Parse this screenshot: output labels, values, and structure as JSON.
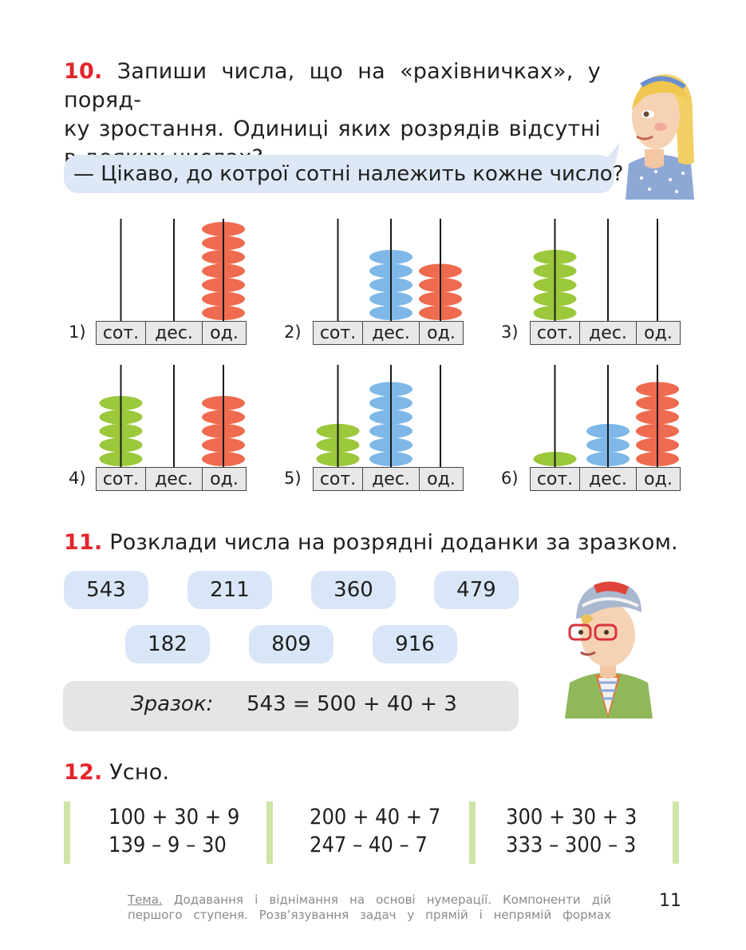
{
  "task10": {
    "number": "10.",
    "line1": "Запиши числа, що на «рахівничках», у поряд-",
    "line2": "ку зростання. Одиниці яких розрядів відсутні",
    "line3": "в деяких числах?",
    "question": "— Цікаво, до котрої сотні належить кожне число?",
    "abacus_labels": {
      "hundreds": "сот.",
      "tens": "дес.",
      "ones": "од."
    },
    "abacuses": [
      {
        "label": "1)",
        "hundreds": 0,
        "tens": 0,
        "ones": 7
      },
      {
        "label": "2)",
        "hundreds": 0,
        "tens": 5,
        "ones": 4
      },
      {
        "label": "3)",
        "hundreds": 5,
        "tens": 0,
        "ones": 0
      },
      {
        "label": "4)",
        "hundreds": 5,
        "tens": 0,
        "ones": 5
      },
      {
        "label": "5)",
        "hundreds": 3,
        "tens": 6,
        "ones": 0
      },
      {
        "label": "6)",
        "hundreds": 1,
        "tens": 3,
        "ones": 6
      }
    ],
    "colors": {
      "hundreds": "#9cc83c",
      "tens": "#7fb8e8",
      "ones": "#ee6b50"
    }
  },
  "task11": {
    "number": "11.",
    "title": "Розклади числа на розрядні доданки за зразком.",
    "numbers_row1": [
      "543",
      "211",
      "360",
      "479"
    ],
    "numbers_row2": [
      "182",
      "809",
      "916"
    ],
    "sample_label": "Зразок:",
    "sample_expr": "543 = 500 + 40 + 3"
  },
  "task12": {
    "number": "12.",
    "title": "Усно.",
    "columns": [
      [
        "100 + 30 + 9",
        "139 – 9 – 30"
      ],
      [
        "200 + 40 + 7",
        "247 – 40 – 7"
      ],
      [
        "300 + 30 + 3",
        "333 – 300 – 3"
      ]
    ]
  },
  "footer": {
    "topic_word": "Тема.",
    "line1_rest": " Додавання і віднімання на основі нумерації. Компоненти дій",
    "line2": "першого ступеня. Розв’язування задач у прямій і непрямій формах",
    "page_number": "11"
  }
}
